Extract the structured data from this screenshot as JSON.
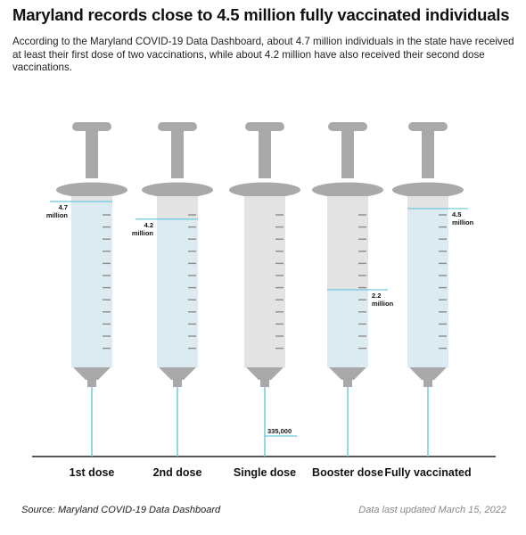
{
  "title": "Maryland records close to 4.5 million fully vaccinated individuals",
  "subtitle": "According to the Maryland COVID-19 Data Dashboard, about 4.7 million individuals in the state have received at least their first dose of two vaccinations, while about 4.2 million have also received their second dose vaccinations.",
  "source": "Source: Maryland COVID-19 Data Dashboard",
  "updated": "Data last updated March 15, 2022",
  "colors": {
    "fill": "#dcebf1",
    "fill_line": "#6cc6dc",
    "barrel": "#e3e3e3",
    "plunger": "#a9a9a9",
    "baseline": "#222222"
  },
  "chart_data": {
    "type": "bar",
    "style": "syringes",
    "categories": [
      "1st dose",
      "2nd dose",
      "Single dose",
      "Booster dose",
      "Fully vaccinated"
    ],
    "values": [
      4.7,
      4.2,
      0.335,
      2.2,
      4.5
    ],
    "unit": "million",
    "labels": [
      "4.7\nmillion",
      "4.2\nmillion",
      "335,000",
      "2.2\nmillion",
      "4.5\nmillion"
    ],
    "ylim": [
      0,
      4.7
    ]
  }
}
